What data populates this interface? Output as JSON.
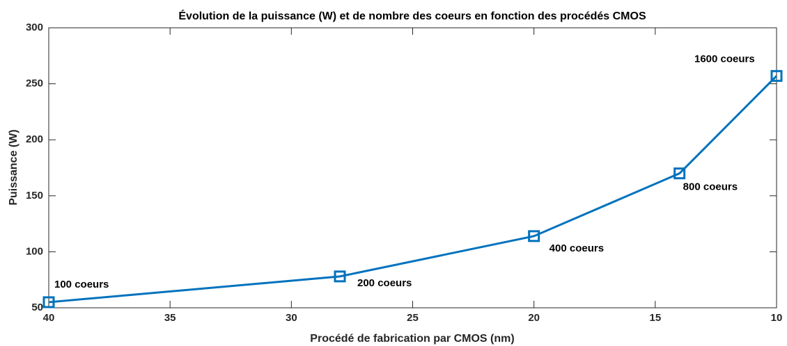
{
  "chart_data": {
    "type": "line",
    "title": "Évolution de la puissance (W) et de nombre des coeurs en fonction des procédés CMOS",
    "xlabel": "Procédé de fabrication par CMOS (nm)",
    "ylabel": "Puissance (W)",
    "x": [
      40,
      28,
      20,
      14,
      10
    ],
    "values": [
      55,
      78,
      114,
      170,
      257
    ],
    "color": "#0072bd",
    "annotations": [
      "100 coeurs",
      "200 coeurs",
      "400 coeurs",
      "800 coeurs",
      "1600 coeurs"
    ],
    "xlim": [
      40,
      10
    ],
    "xticks": [
      40,
      35,
      30,
      25,
      20,
      15,
      10
    ],
    "ylim": [
      50,
      300
    ],
    "yticks": [
      50,
      100,
      150,
      200,
      250,
      300
    ],
    "grid": false
  }
}
